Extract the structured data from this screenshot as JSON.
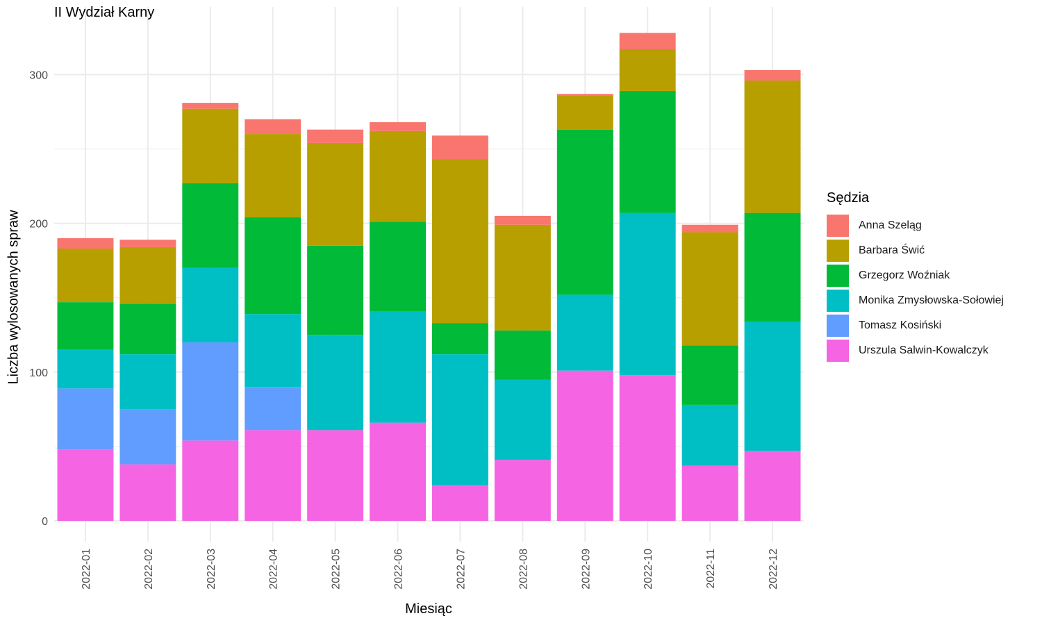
{
  "chart_data": {
    "type": "bar",
    "stacked": true,
    "title": "II Wydział Karny",
    "xlabel": "Miesiąc",
    "ylabel": "Liczba wylosowanych spraw",
    "categories": [
      "2022-01",
      "2022-02",
      "2022-03",
      "2022-04",
      "2022-05",
      "2022-06",
      "2022-07",
      "2022-08",
      "2022-09",
      "2022-10",
      "2022-11",
      "2022-12"
    ],
    "ylim": [
      0,
      330
    ],
    "yticks": [
      0,
      100,
      200,
      300
    ],
    "grid": true,
    "legend_title": "Sędzia",
    "legend_position": "right",
    "series": [
      {
        "name": "Urszula Salwin-Kowalczyk",
        "color": "#F564E3",
        "values": [
          48,
          38,
          54,
          61,
          61,
          66,
          24,
          41,
          101,
          98,
          37,
          47
        ]
      },
      {
        "name": "Tomasz Kosiński",
        "color": "#619CFF",
        "values": [
          41,
          37,
          66,
          29,
          0,
          0,
          0,
          0,
          0,
          0,
          0,
          0
        ]
      },
      {
        "name": "Monika Zmysłowska-Sołowiej",
        "color": "#00BFC4",
        "values": [
          26,
          37,
          50,
          49,
          64,
          75,
          88,
          54,
          51,
          109,
          41,
          87
        ]
      },
      {
        "name": "Grzegorz Woźniak",
        "color": "#00BA38",
        "values": [
          32,
          34,
          57,
          65,
          60,
          60,
          21,
          33,
          111,
          82,
          40,
          73
        ]
      },
      {
        "name": "Barbara Świć",
        "color": "#B79F00",
        "values": [
          36,
          38,
          50,
          56,
          69,
          61,
          110,
          71,
          23,
          28,
          76,
          89
        ]
      },
      {
        "name": "Anna Szeląg",
        "color": "#F8766D",
        "values": [
          7,
          5,
          4,
          10,
          9,
          6,
          16,
          6,
          1,
          11,
          5,
          7
        ]
      }
    ],
    "legend_order": [
      "Anna Szeląg",
      "Barbara Świć",
      "Grzegorz Woźniak",
      "Monika Zmysłowska-Sołowiej",
      "Tomasz Kosiński",
      "Urszula Salwin-Kowalczyk"
    ]
  }
}
